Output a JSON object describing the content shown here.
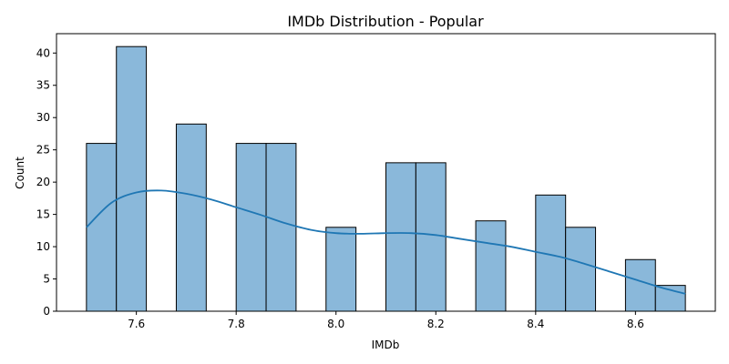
{
  "chart_data": {
    "type": "bar",
    "title": "IMDb Distribution - Popular",
    "xlabel": "IMDb",
    "ylabel": "Count",
    "xlim": [
      7.44,
      8.76
    ],
    "ylim": [
      0,
      43
    ],
    "xticks": [
      7.6,
      7.8,
      8.0,
      8.2,
      8.4,
      8.6
    ],
    "xtick_labels": [
      "7.6",
      "7.8",
      "8.0",
      "8.2",
      "8.4",
      "8.6"
    ],
    "yticks": [
      0,
      5,
      10,
      15,
      20,
      25,
      30,
      35,
      40
    ],
    "ytick_labels": [
      "0",
      "5",
      "10",
      "15",
      "20",
      "25",
      "30",
      "35",
      "40"
    ],
    "grid": false,
    "colors": {
      "bar_fill": "#8ab8da",
      "bar_edge": "#000000",
      "kde_line": "#1f77b4"
    },
    "bins": [
      {
        "x0": 7.5,
        "x1": 7.56,
        "count": 26
      },
      {
        "x0": 7.56,
        "x1": 7.62,
        "count": 41
      },
      {
        "x0": 7.62,
        "x1": 7.68,
        "count": 0
      },
      {
        "x0": 7.68,
        "x1": 7.74,
        "count": 29
      },
      {
        "x0": 7.74,
        "x1": 7.8,
        "count": 0
      },
      {
        "x0": 7.8,
        "x1": 7.86,
        "count": 26
      },
      {
        "x0": 7.86,
        "x1": 7.92,
        "count": 26
      },
      {
        "x0": 7.92,
        "x1": 7.98,
        "count": 0
      },
      {
        "x0": 7.98,
        "x1": 8.04,
        "count": 13
      },
      {
        "x0": 8.04,
        "x1": 8.1,
        "count": 0
      },
      {
        "x0": 8.1,
        "x1": 8.16,
        "count": 23
      },
      {
        "x0": 8.16,
        "x1": 8.22,
        "count": 23
      },
      {
        "x0": 8.22,
        "x1": 8.28,
        "count": 0
      },
      {
        "x0": 8.28,
        "x1": 8.34,
        "count": 14
      },
      {
        "x0": 8.34,
        "x1": 8.4,
        "count": 0
      },
      {
        "x0": 8.4,
        "x1": 8.46,
        "count": 18
      },
      {
        "x0": 8.46,
        "x1": 8.52,
        "count": 13
      },
      {
        "x0": 8.52,
        "x1": 8.58,
        "count": 0
      },
      {
        "x0": 8.58,
        "x1": 8.64,
        "count": 8
      },
      {
        "x0": 8.64,
        "x1": 8.7,
        "count": 4
      }
    ],
    "kde": {
      "x": [
        7.5,
        7.55,
        7.6,
        7.65,
        7.7,
        7.75,
        7.8,
        7.85,
        7.9,
        7.95,
        8.0,
        8.05,
        8.1,
        8.15,
        8.2,
        8.25,
        8.3,
        8.35,
        8.4,
        8.45,
        8.5,
        8.55,
        8.6,
        8.65,
        8.7
      ],
      "y": [
        13.0,
        16.8,
        18.4,
        18.7,
        18.2,
        17.3,
        16.1,
        14.9,
        13.6,
        12.6,
        12.1,
        12.0,
        12.1,
        12.1,
        11.8,
        11.2,
        10.6,
        10.0,
        9.2,
        8.4,
        7.3,
        6.1,
        4.9,
        3.7,
        2.7
      ]
    }
  }
}
